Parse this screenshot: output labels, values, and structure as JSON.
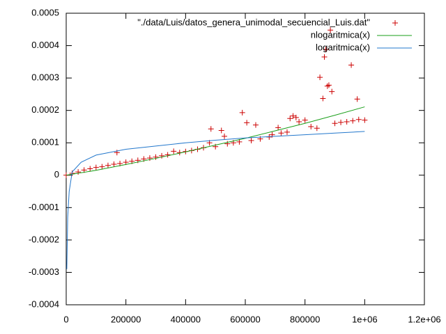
{
  "chart_data": {
    "type": "scatter",
    "xlim": [
      0,
      1200000
    ],
    "ylim": [
      -0.0004,
      0.0005
    ],
    "xticks": [
      0,
      200000,
      400000,
      600000,
      800000,
      {
        "value": 1000000,
        "label": "1e+06"
      },
      {
        "value": 1200000,
        "label": "1.2e+06"
      }
    ],
    "yticks": [
      -0.0004,
      -0.0003,
      -0.0002,
      -0.0001,
      0,
      0.0001,
      0.0002,
      0.0003,
      0.0004,
      0.0005
    ],
    "legend": "top-right",
    "series": [
      {
        "name": "\"./data/Luis/datos_genera_unimodal_secuencial_Luis.dat\"",
        "color": "#cc0000",
        "style": "points",
        "x": [
          0,
          20000,
          40000,
          60000,
          80000,
          100000,
          120000,
          140000,
          160000,
          170000,
          180000,
          200000,
          220000,
          240000,
          260000,
          280000,
          300000,
          320000,
          340000,
          360000,
          380000,
          400000,
          420000,
          440000,
          460000,
          480000,
          485000,
          500000,
          520000,
          530000,
          540000,
          560000,
          580000,
          590000,
          605000,
          620000,
          635000,
          650000,
          680000,
          690000,
          710000,
          720000,
          740000,
          750000,
          760000,
          770000,
          780000,
          800000,
          820000,
          840000,
          850000,
          860000,
          865000,
          870000,
          875000,
          880000,
          885000,
          890000,
          900000,
          920000,
          940000,
          955000,
          960000,
          975000,
          980000,
          1000000
        ],
        "values": [
          0,
          6e-06,
          1e-05,
          1.6e-05,
          2e-05,
          2.4e-05,
          2.6e-05,
          3e-05,
          3.4e-05,
          7e-05,
          3.6e-05,
          4e-05,
          4.3e-05,
          4.6e-05,
          5e-05,
          5.3e-05,
          5.6e-05,
          6e-05,
          6.3e-05,
          7.4e-05,
          7e-05,
          7.3e-05,
          7.6e-05,
          8e-05,
          8.5e-05,
          0.0001,
          0.000143,
          8.8e-05,
          0.000138,
          0.00012,
          9.7e-05,
          0.0001,
          0.000103,
          0.000193,
          0.000162,
          0.000107,
          0.000155,
          0.000112,
          0.000118,
          0.000125,
          0.000147,
          0.00013,
          0.000133,
          0.000175,
          0.000183,
          0.000178,
          0.000165,
          0.00017,
          0.00015,
          0.000145,
          0.000302,
          0.000237,
          0.000365,
          0.000388,
          0.000275,
          0.000278,
          0.000448,
          0.000258,
          0.00016,
          0.000163,
          0.000165,
          0.00034,
          0.000168,
          0.000235,
          0.000172,
          0.00017
        ]
      },
      {
        "name": "nlogaritmica(x)",
        "color": "#1a9f1a",
        "style": "line",
        "x": [
          0,
          100000,
          200000,
          300000,
          400000,
          500000,
          600000,
          700000,
          800000,
          900000,
          1000000
        ],
        "values": [
          0,
          1.5e-05,
          3.3e-05,
          5.2e-05,
          7.2e-05,
          9.3e-05,
          0.000114,
          0.000137,
          0.00016,
          0.000185,
          0.000211
        ]
      },
      {
        "name": "logaritmica(x)",
        "color": "#2277cc",
        "style": "line",
        "x": [
          2000,
          5000,
          10000,
          20000,
          50000,
          100000,
          200000,
          300000,
          400000,
          500000,
          600000,
          700000,
          800000,
          900000,
          1000000
        ],
        "values": [
          -0.00029,
          -0.00013,
          -5e-05,
          1e-05,
          4e-05,
          6.2e-05,
          8e-05,
          9e-05,
          0.0001,
          0.000108,
          0.000115,
          0.00012,
          0.000125,
          0.00013,
          0.000135
        ]
      }
    ]
  }
}
